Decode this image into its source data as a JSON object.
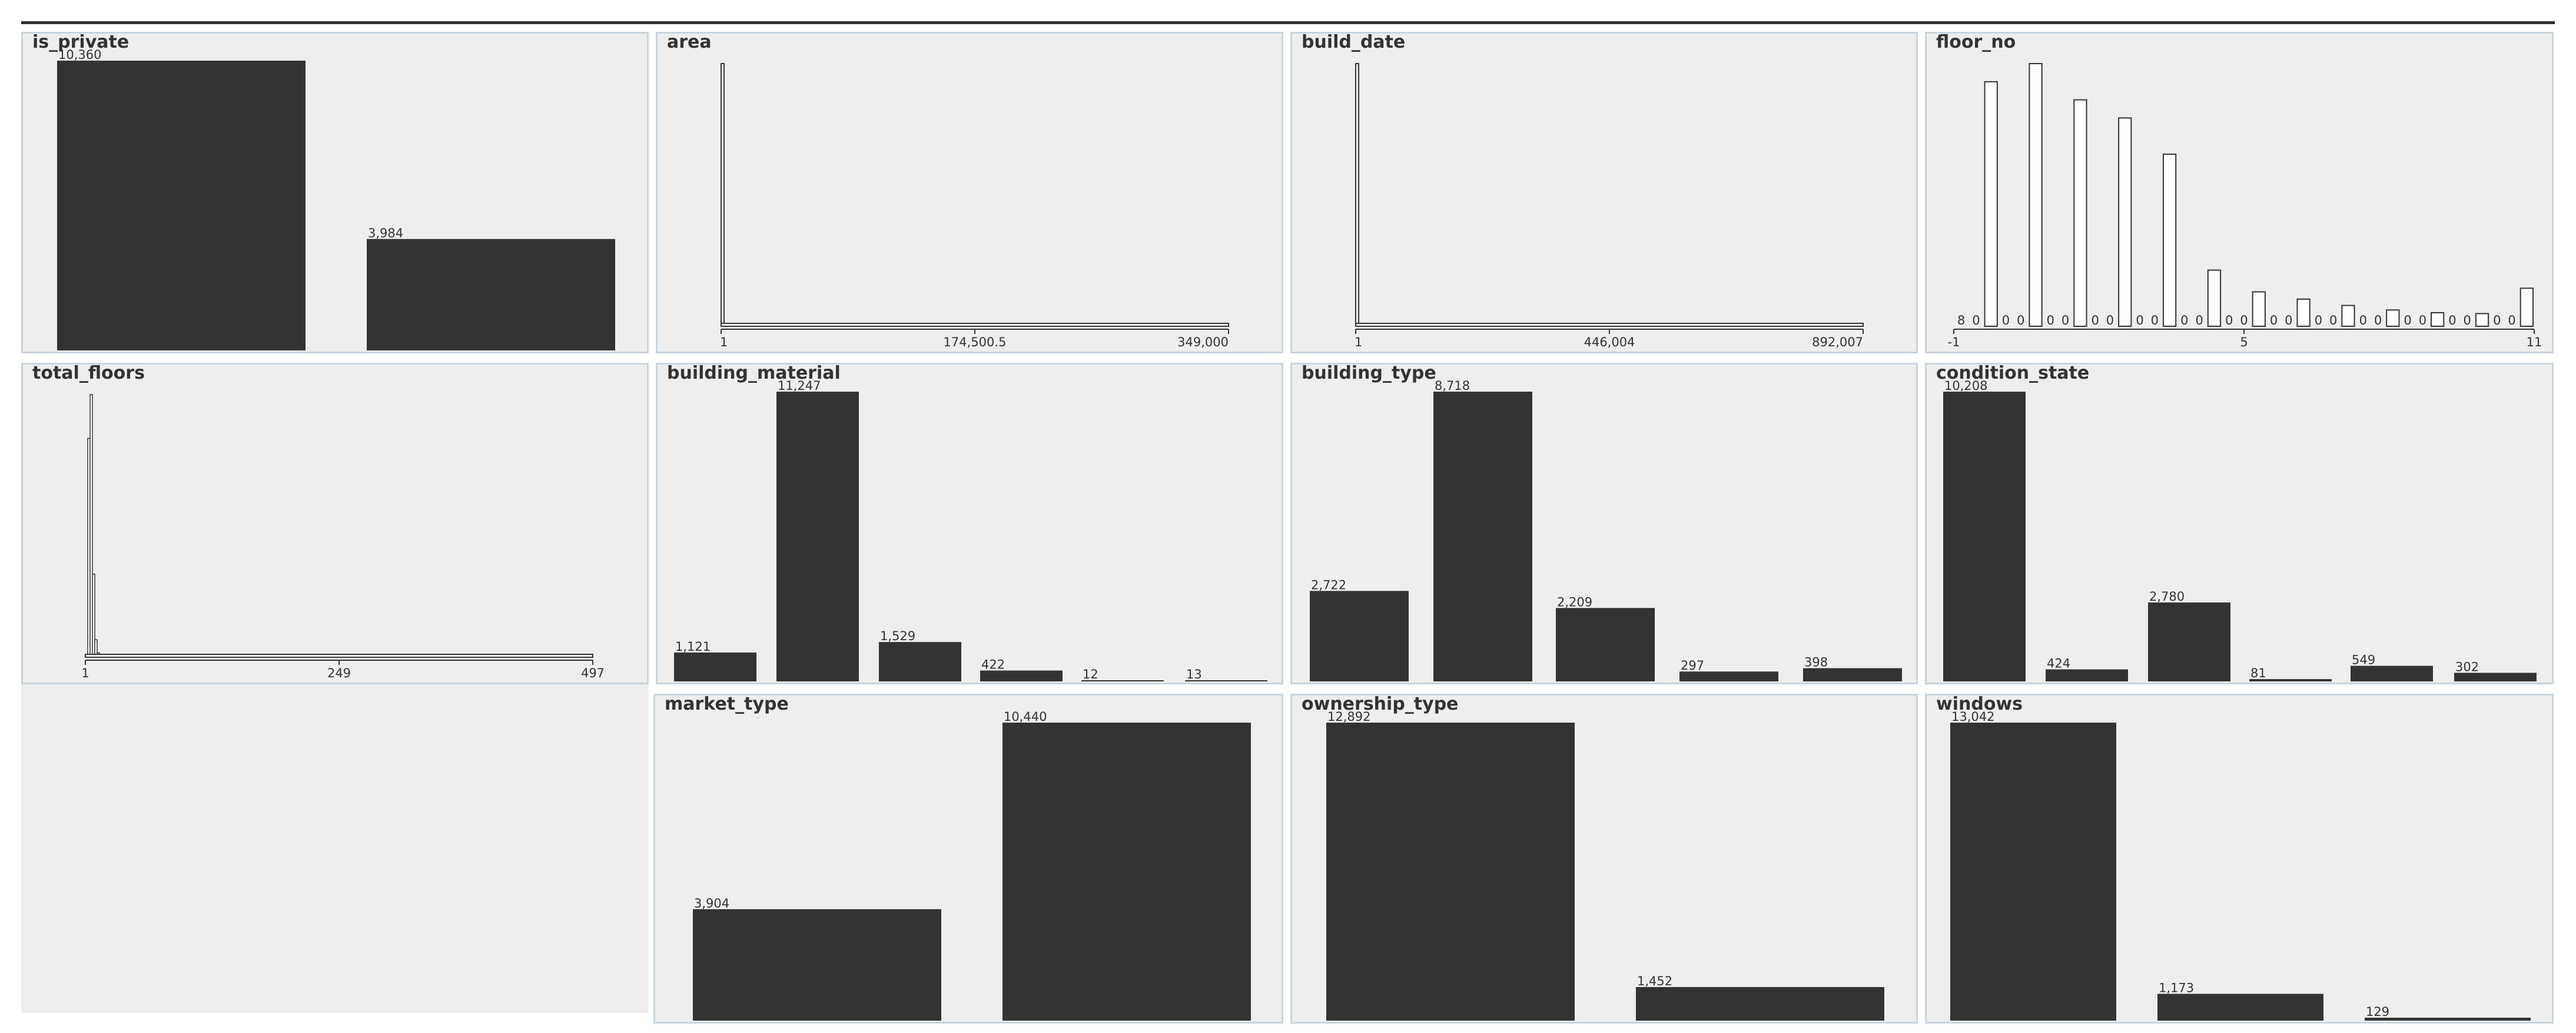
{
  "colors": {
    "bar": "#333333",
    "panel_bg": "#eeeeee",
    "panel_border": "#c8d4df"
  },
  "chart_data": [
    {
      "name": "is_private",
      "type": "bar",
      "values": [
        10360,
        3984
      ],
      "value_labels": [
        "10,360",
        "3,984"
      ]
    },
    {
      "name": "area",
      "type": "bar",
      "tick_labels": [
        "1",
        "174,500.5",
        "349,000"
      ],
      "xlim": [
        1,
        349000
      ],
      "values": [
        14344
      ],
      "note": ""
    },
    {
      "name": "build_date",
      "type": "bar",
      "tick_labels": [
        "1",
        "446,004",
        "892,007"
      ],
      "xlim": [
        1,
        892007
      ],
      "values": [
        14344
      ]
    },
    {
      "name": "floor_no",
      "type": "bar",
      "tick_labels": [
        "-1",
        "5",
        "11"
      ],
      "xlim": [
        -1,
        11
      ],
      "values": [
        8,
        0,
        2700,
        0,
        0,
        2900,
        0,
        0,
        2500,
        0,
        0,
        2300,
        0,
        0,
        1900,
        0,
        0,
        620,
        0,
        0,
        380,
        0,
        0,
        300,
        0,
        0,
        230,
        0,
        0,
        180,
        0,
        0,
        150,
        0,
        0,
        140,
        0,
        0,
        420
      ],
      "zero_labels": [
        "8",
        "0",
        "0",
        "0",
        "0",
        "0",
        "0",
        "0",
        "0",
        "0",
        "0",
        "0",
        "0",
        "0",
        "0",
        "0",
        "0",
        "0",
        "0",
        "0",
        "0",
        "0",
        "0",
        "0",
        "0",
        "0"
      ]
    },
    {
      "name": "total_floors",
      "type": "bar",
      "tick_labels": [
        "1",
        "249",
        "497"
      ],
      "xlim": [
        1,
        497
      ],
      "values": [
        0,
        10000,
        12000,
        3800,
        800,
        200,
        120,
        60,
        40,
        30,
        20,
        15,
        10,
        8,
        6,
        5,
        4,
        3,
        3,
        2
      ]
    },
    {
      "name": "building_material",
      "type": "bar",
      "values": [
        1121,
        11247,
        1529,
        422,
        12,
        13
      ],
      "value_labels": [
        "1,121",
        "11,247",
        "1,529",
        "422",
        "12",
        "13"
      ]
    },
    {
      "name": "building_type",
      "type": "bar",
      "values": [
        2722,
        8718,
        2209,
        297,
        398
      ],
      "value_labels": [
        "2,722",
        "8,718",
        "2,209",
        "297",
        "398"
      ]
    },
    {
      "name": "condition_state",
      "type": "bar",
      "values": [
        10208,
        424,
        2780,
        81,
        549,
        302
      ],
      "value_labels": [
        "10,208",
        "424",
        "2,780",
        "81",
        "549",
        "302"
      ]
    },
    {
      "name": "market_type",
      "type": "bar",
      "values": [
        3904,
        10440
      ],
      "value_labels": [
        "3,904",
        "10,440"
      ]
    },
    {
      "name": "ownership_type",
      "type": "bar",
      "values": [
        12892,
        1452
      ],
      "value_labels": [
        "12,892",
        "1,452"
      ]
    },
    {
      "name": "windows",
      "type": "bar",
      "values": [
        13042,
        1173,
        129
      ],
      "value_labels": [
        "13,042",
        "1,173",
        "129"
      ]
    }
  ]
}
